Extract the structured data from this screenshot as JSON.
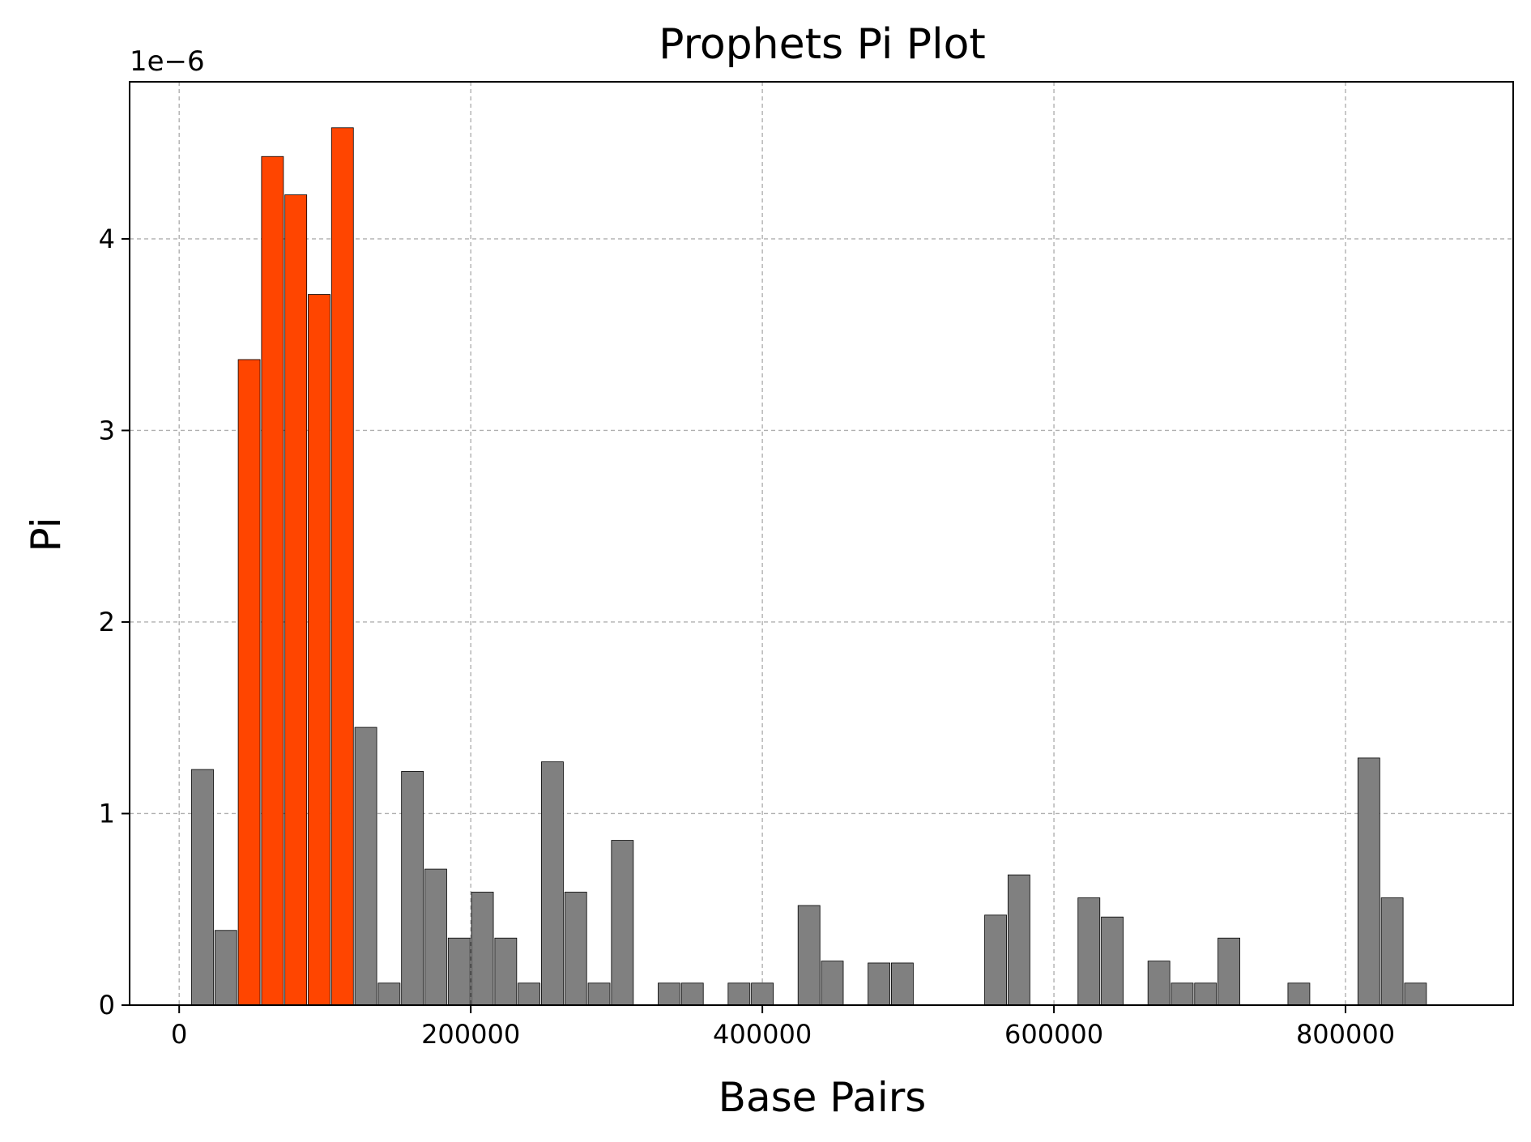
{
  "chart_data": {
    "type": "bar",
    "title": "Prophets Pi Plot",
    "xlabel": "Base Pairs",
    "ylabel": "Pi",
    "y_offset_label": "1e−6",
    "xlim": [
      -34000,
      915000
    ],
    "ylim": [
      0,
      4.82
    ],
    "xticks": [
      0,
      200000,
      400000,
      600000,
      800000
    ],
    "yticks": [
      0,
      1,
      2,
      3,
      4
    ],
    "grid": true,
    "bar_width": 15000,
    "colors": {
      "default": "#808080",
      "highlight": "#ff4500",
      "edge": "#000000"
    },
    "bars": [
      {
        "x": 16000,
        "value": 1.23,
        "highlight": false
      },
      {
        "x": 32000,
        "value": 0.39,
        "highlight": false
      },
      {
        "x": 48000,
        "value": 3.37,
        "highlight": true
      },
      {
        "x": 64000,
        "value": 4.43,
        "highlight": true
      },
      {
        "x": 80000,
        "value": 4.23,
        "highlight": true
      },
      {
        "x": 96000,
        "value": 3.71,
        "highlight": true
      },
      {
        "x": 112000,
        "value": 4.58,
        "highlight": true
      },
      {
        "x": 128000,
        "value": 1.45,
        "highlight": false
      },
      {
        "x": 144000,
        "value": 0.115,
        "highlight": false
      },
      {
        "x": 160000,
        "value": 1.22,
        "highlight": false
      },
      {
        "x": 176000,
        "value": 0.71,
        "highlight": false
      },
      {
        "x": 192000,
        "value": 0.35,
        "highlight": false
      },
      {
        "x": 208000,
        "value": 0.59,
        "highlight": false
      },
      {
        "x": 224000,
        "value": 0.35,
        "highlight": false
      },
      {
        "x": 240000,
        "value": 0.115,
        "highlight": false
      },
      {
        "x": 256000,
        "value": 1.27,
        "highlight": false
      },
      {
        "x": 272000,
        "value": 0.59,
        "highlight": false
      },
      {
        "x": 288000,
        "value": 0.115,
        "highlight": false
      },
      {
        "x": 304000,
        "value": 0.86,
        "highlight": false
      },
      {
        "x": 336000,
        "value": 0.115,
        "highlight": false
      },
      {
        "x": 352000,
        "value": 0.115,
        "highlight": false
      },
      {
        "x": 384000,
        "value": 0.115,
        "highlight": false
      },
      {
        "x": 400000,
        "value": 0.115,
        "highlight": false
      },
      {
        "x": 432000,
        "value": 0.52,
        "highlight": false
      },
      {
        "x": 448000,
        "value": 0.23,
        "highlight": false
      },
      {
        "x": 480000,
        "value": 0.22,
        "highlight": false
      },
      {
        "x": 496000,
        "value": 0.22,
        "highlight": false
      },
      {
        "x": 560000,
        "value": 0.47,
        "highlight": false
      },
      {
        "x": 576000,
        "value": 0.68,
        "highlight": false
      },
      {
        "x": 624000,
        "value": 0.56,
        "highlight": false
      },
      {
        "x": 640000,
        "value": 0.46,
        "highlight": false
      },
      {
        "x": 672000,
        "value": 0.23,
        "highlight": false
      },
      {
        "x": 688000,
        "value": 0.115,
        "highlight": false
      },
      {
        "x": 704000,
        "value": 0.115,
        "highlight": false
      },
      {
        "x": 720000,
        "value": 0.35,
        "highlight": false
      },
      {
        "x": 768000,
        "value": 0.115,
        "highlight": false
      },
      {
        "x": 816000,
        "value": 1.29,
        "highlight": false
      },
      {
        "x": 832000,
        "value": 0.56,
        "highlight": false
      },
      {
        "x": 848000,
        "value": 0.115,
        "highlight": false
      }
    ]
  }
}
